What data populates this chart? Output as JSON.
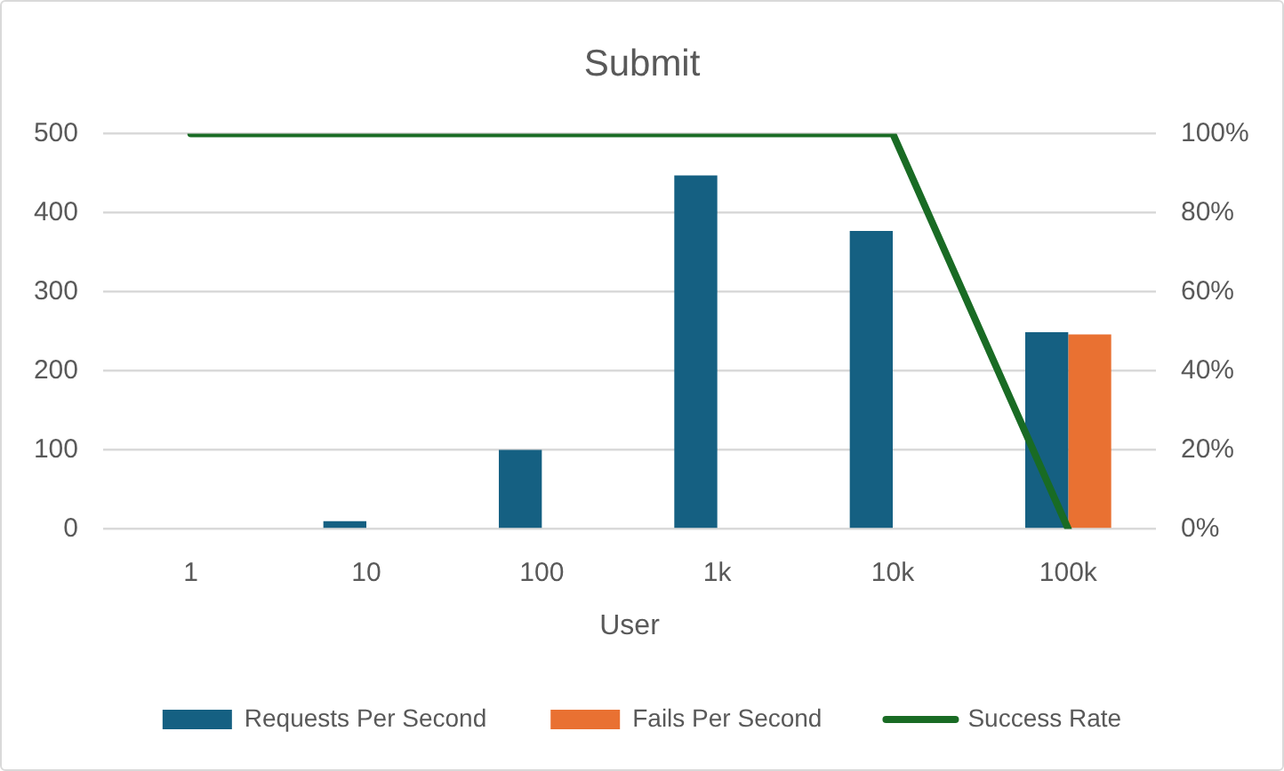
{
  "chart_data": {
    "type": "bar",
    "title": "Submit",
    "xlabel": "User",
    "categories": [
      "1",
      "10",
      "100",
      "1k",
      "10k",
      "100k"
    ],
    "series": [
      {
        "name": "Requests Per Second",
        "color": "#156082",
        "values": [
          0,
          10,
          100,
          447,
          377,
          249
        ]
      },
      {
        "name": "Fails Per Second",
        "color": "#e97132",
        "values": [
          0,
          0,
          0,
          0,
          0,
          246
        ]
      },
      {
        "name": "Success Rate",
        "type": "line",
        "axis": "y2",
        "color": "#196b24",
        "values": [
          100,
          100,
          100,
          100,
          100,
          0
        ]
      }
    ],
    "ylim": [
      0,
      500
    ],
    "yticks": [
      0,
      100,
      200,
      300,
      400,
      500
    ],
    "y2lim": [
      0,
      100
    ],
    "y2ticks": [
      {
        "value": 0,
        "label": "0%"
      },
      {
        "value": 20,
        "label": "20%"
      },
      {
        "value": 40,
        "label": "40%"
      },
      {
        "value": 60,
        "label": "60%"
      },
      {
        "value": 80,
        "label": "80%"
      },
      {
        "value": 100,
        "label": "100%"
      }
    ],
    "grid": "y",
    "legend": "bottom",
    "marker": "none"
  }
}
